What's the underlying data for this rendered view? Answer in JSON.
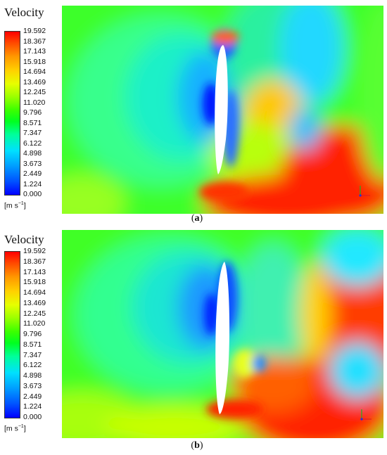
{
  "chart_data": [
    {
      "type": "heatmap",
      "title": "Velocity",
      "unit_label": "m s",
      "unit_exponent": "−1",
      "colorbar_ticks": [
        "19.592",
        "18.367",
        "17.143",
        "15.918",
        "14.694",
        "13.469",
        "12.245",
        "11.020",
        "9.796",
        "8.571",
        "7.347",
        "6.122",
        "4.898",
        "3.673",
        "2.449",
        "1.224",
        "0.000"
      ],
      "range": [
        0.0,
        19.592
      ],
      "colormap": [
        "#0000ff",
        "#00a0ff",
        "#00ffff",
        "#00ff40",
        "#80ff00",
        "#ffff00",
        "#ff9000",
        "#ff0000"
      ],
      "caption": "a"
    },
    {
      "type": "heatmap",
      "title": "Velocity",
      "unit_label": "m s",
      "unit_exponent": "−1",
      "colorbar_ticks": [
        "19.592",
        "18.367",
        "17.143",
        "15.918",
        "14.694",
        "13.469",
        "12.245",
        "11.020",
        "9.796",
        "8.571",
        "7.347",
        "6.122",
        "4.898",
        "3.673",
        "2.449",
        "1.224",
        "0.000"
      ],
      "range": [
        0.0,
        19.592
      ],
      "colormap": [
        "#0000ff",
        "#00a0ff",
        "#00ffff",
        "#00ff40",
        "#80ff00",
        "#ffff00",
        "#ff9000",
        "#ff0000"
      ],
      "caption": "b"
    }
  ]
}
